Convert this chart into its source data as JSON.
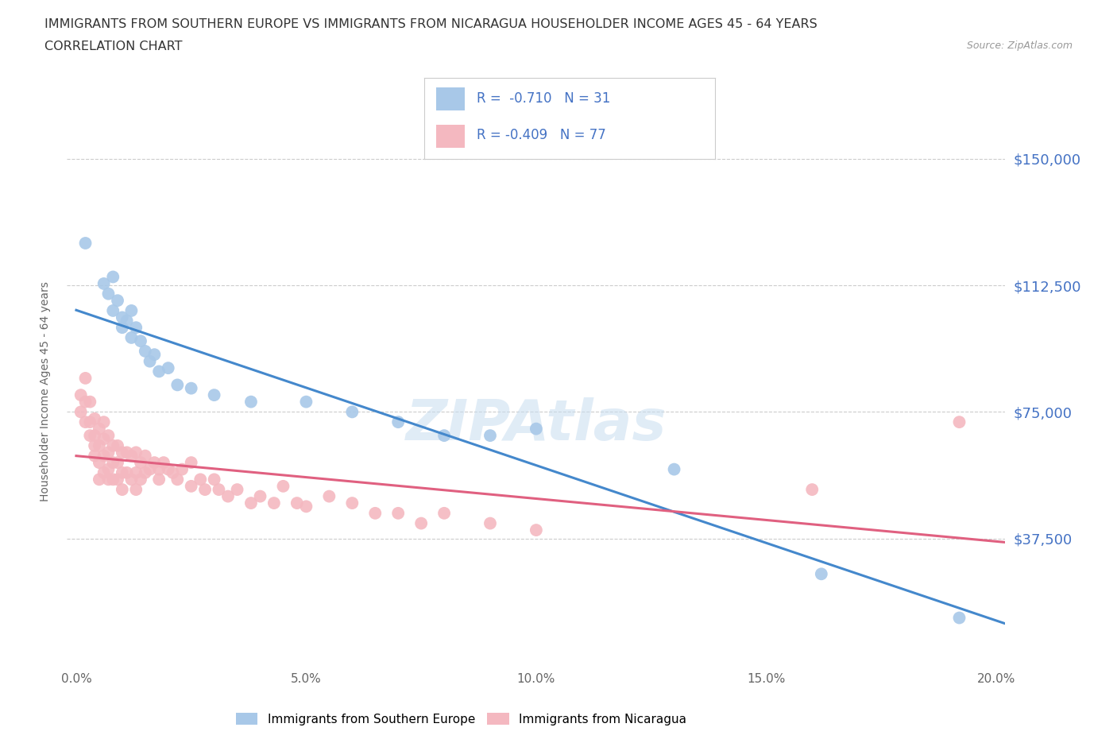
{
  "title_line1": "IMMIGRANTS FROM SOUTHERN EUROPE VS IMMIGRANTS FROM NICARAGUA HOUSEHOLDER INCOME AGES 45 - 64 YEARS",
  "title_line2": "CORRELATION CHART",
  "source_text": "Source: ZipAtlas.com",
  "ylabel": "Householder Income Ages 45 - 64 years",
  "xlim": [
    -0.002,
    0.202
  ],
  "ylim": [
    0,
    162000
  ],
  "yticks": [
    37500,
    75000,
    112500,
    150000
  ],
  "ytick_labels": [
    "$37,500",
    "$75,000",
    "$112,500",
    "$150,000"
  ],
  "xticks": [
    0.0,
    0.05,
    0.1,
    0.15,
    0.2
  ],
  "xtick_labels": [
    "0.0%",
    "5.0%",
    "10.0%",
    "15.0%",
    "20.0%"
  ],
  "blue_color": "#a8c8e8",
  "pink_color": "#f4b8c0",
  "blue_line_color": "#4488cc",
  "pink_line_color": "#e06080",
  "blue_R": -0.71,
  "blue_N": 31,
  "pink_R": -0.409,
  "pink_N": 77,
  "legend_label_blue": "Immigrants from Southern Europe",
  "legend_label_pink": "Immigrants from Nicaragua",
  "watermark": "ZIPAtlas",
  "blue_x": [
    0.002,
    0.006,
    0.007,
    0.008,
    0.008,
    0.009,
    0.01,
    0.01,
    0.011,
    0.012,
    0.012,
    0.013,
    0.014,
    0.015,
    0.016,
    0.017,
    0.018,
    0.02,
    0.022,
    0.025,
    0.03,
    0.038,
    0.05,
    0.06,
    0.07,
    0.08,
    0.09,
    0.1,
    0.13,
    0.162,
    0.192
  ],
  "blue_y": [
    125000,
    113000,
    110000,
    105000,
    115000,
    108000,
    100000,
    103000,
    102000,
    97000,
    105000,
    100000,
    96000,
    93000,
    90000,
    92000,
    87000,
    88000,
    83000,
    82000,
    80000,
    78000,
    78000,
    75000,
    72000,
    68000,
    68000,
    70000,
    58000,
    27000,
    14000
  ],
  "pink_x": [
    0.001,
    0.001,
    0.002,
    0.002,
    0.002,
    0.003,
    0.003,
    0.003,
    0.004,
    0.004,
    0.004,
    0.004,
    0.005,
    0.005,
    0.005,
    0.005,
    0.006,
    0.006,
    0.006,
    0.006,
    0.007,
    0.007,
    0.007,
    0.007,
    0.008,
    0.008,
    0.008,
    0.009,
    0.009,
    0.009,
    0.01,
    0.01,
    0.01,
    0.011,
    0.011,
    0.012,
    0.012,
    0.013,
    0.013,
    0.013,
    0.014,
    0.014,
    0.015,
    0.015,
    0.016,
    0.017,
    0.018,
    0.018,
    0.019,
    0.02,
    0.021,
    0.022,
    0.023,
    0.025,
    0.025,
    0.027,
    0.028,
    0.03,
    0.031,
    0.033,
    0.035,
    0.038,
    0.04,
    0.043,
    0.045,
    0.048,
    0.05,
    0.055,
    0.06,
    0.065,
    0.07,
    0.075,
    0.08,
    0.09,
    0.1,
    0.16,
    0.192
  ],
  "pink_y": [
    80000,
    75000,
    85000,
    78000,
    72000,
    78000,
    72000,
    68000,
    73000,
    68000,
    65000,
    62000,
    70000,
    65000,
    60000,
    55000,
    72000,
    67000,
    62000,
    57000,
    68000,
    63000,
    58000,
    55000,
    65000,
    60000,
    55000,
    65000,
    60000,
    55000,
    63000,
    57000,
    52000,
    63000,
    57000,
    62000,
    55000,
    63000,
    57000,
    52000,
    60000,
    55000,
    62000,
    57000,
    58000,
    60000,
    55000,
    58000,
    60000,
    58000,
    57000,
    55000,
    58000,
    53000,
    60000,
    55000,
    52000,
    55000,
    52000,
    50000,
    52000,
    48000,
    50000,
    48000,
    53000,
    48000,
    47000,
    50000,
    48000,
    45000,
    45000,
    42000,
    45000,
    42000,
    40000,
    52000,
    72000
  ]
}
